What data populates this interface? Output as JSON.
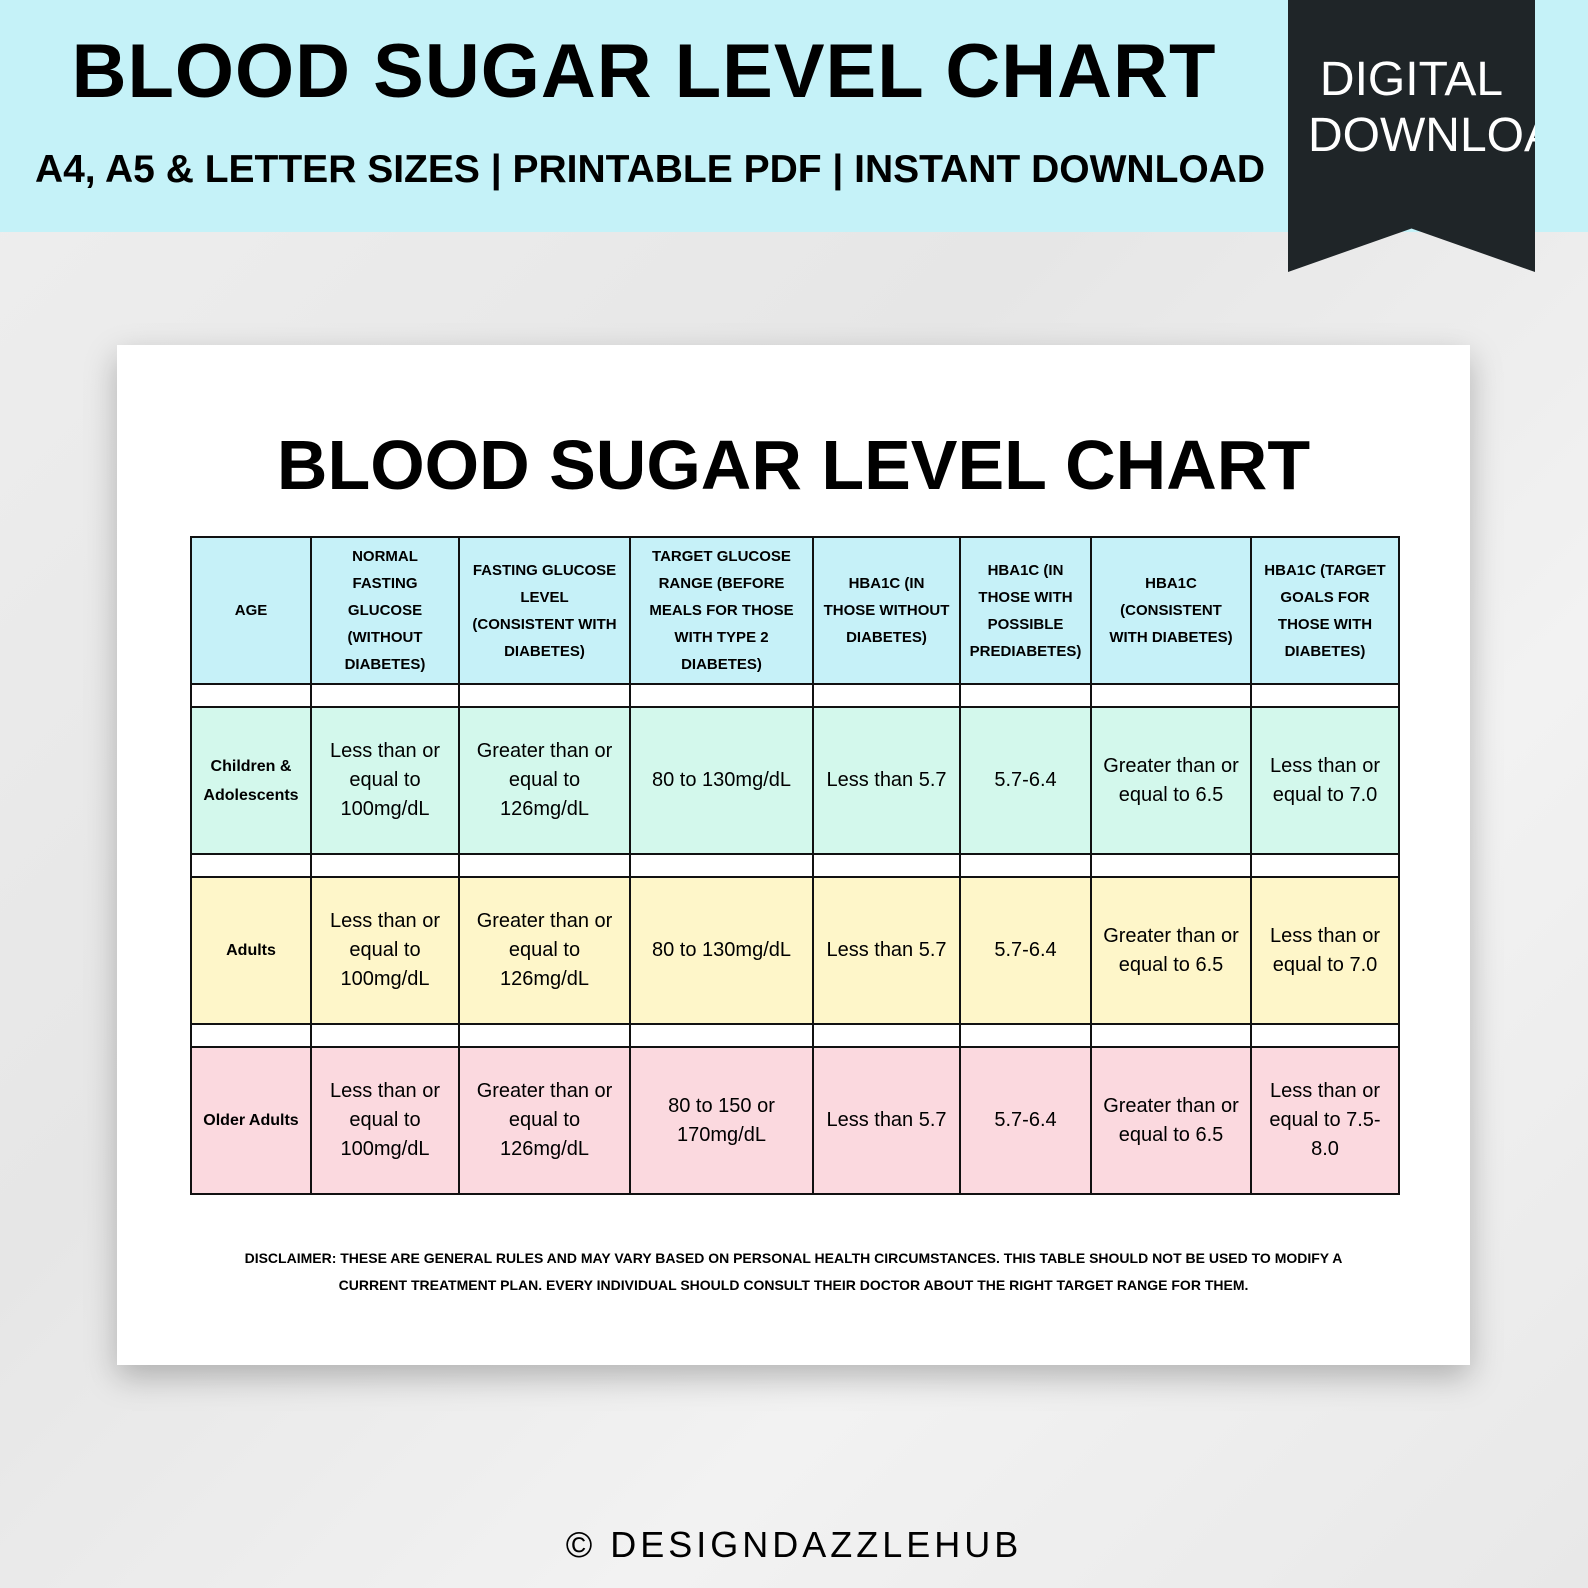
{
  "banner": {
    "title": "BLOOD SUGAR LEVEL CHART",
    "subtitle": "A4, A5 & LETTER SIZES | PRINTABLE PDF | INSTANT DOWNLOAD",
    "badge": "DIGITAL DOWNLOAD"
  },
  "sheet": {
    "title": "BLOOD SUGAR LEVEL CHART",
    "table": {
      "header_color": "#c6f1f8",
      "header": [
        "AGE",
        "NORMAL  FASTING GLUCOSE (WITHOUT DIABETES)",
        "FASTING GLUCOSE LEVEL (CONSISTENT WITH DIABETES)",
        "TARGET GLUCOSE RANGE (BEFORE MEALS FOR THOSE WITH TYPE 2 DIABETES)",
        "HBA1C (IN THOSE WITHOUT DIABETES)",
        "HBA1C (IN THOSE WITH POSSIBLE PREDIABETES)",
        "HBA1C (CONSISTENT WITH DIABETES)",
        "HBA1C (TARGET GOALS FOR THOSE WITH DIABETES)"
      ],
      "rows": [
        {
          "color": "#d3f8ec",
          "cells": [
            "Children & Adolescents",
            "Less than or equal to 100mg/dL",
            "Greater than or equal to 126mg/dL",
            "80 to 130mg/dL",
            "Less than 5.7",
            "5.7-6.4",
            "Greater than or equal to 6.5",
            "Less than or equal to 7.0"
          ]
        },
        {
          "color": "#fef6c9",
          "cells": [
            "Adults",
            "Less than or equal to 100mg/dL",
            "Greater than or equal to 126mg/dL",
            "80 to 130mg/dL",
            "Less than 5.7",
            "5.7-6.4",
            "Greater than or equal to 6.5",
            "Less than or equal to 7.0"
          ]
        },
        {
          "color": "#fbd9df",
          "cells": [
            "Older Adults",
            "Less than or equal to 100mg/dL",
            "Greater than or equal to 126mg/dL",
            "80 to 150 or 170mg/dL",
            "Less than 5.7",
            "5.7-6.4",
            "Greater than or equal to 6.5",
            "Less than or equal to 7.5-8.0"
          ]
        }
      ]
    },
    "disclaimer": "DISCLAIMER: THESE ARE GENERAL RULES AND MAY VARY BASED ON PERSONAL HEALTH CIRCUMSTANCES. THIS TABLE SHOULD NOT BE USED TO MODIFY A CURRENT TREATMENT PLAN. EVERY INDIVIDUAL SHOULD CONSULT THEIR DOCTOR ABOUT THE RIGHT TARGET RANGE FOR THEM."
  },
  "footer": "© DESIGNDAZZLEHUB"
}
